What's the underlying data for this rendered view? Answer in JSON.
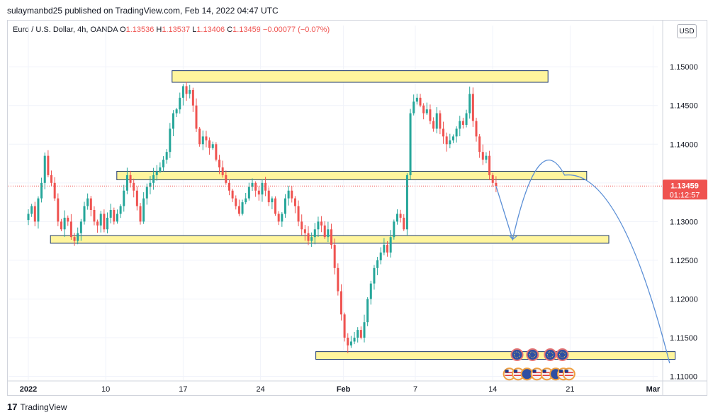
{
  "publisher": "sulaymanbd25 published on TradingView.com, Feb 14, 2022 04:47 UTC",
  "legend": {
    "symbol": "Euro / U.S. Dollar, 4h, OANDA",
    "open_label": "O",
    "open": "1.13536",
    "high_label": "H",
    "high": "1.13537",
    "low_label": "L",
    "low": "1.13406",
    "close_label": "C",
    "close": "1.13459",
    "change": "−0.00077 (−0.07%)"
  },
  "currency": "USD",
  "footer": {
    "logo": "17",
    "brand": "TradingView"
  },
  "colors": {
    "up": "#26a69a",
    "down": "#ef5350",
    "zone_fill": "#fff59d",
    "zone_stroke": "#1e3a6e",
    "projection": "#5b8fd6",
    "price_tag": "#ef5350"
  },
  "chart_data": {
    "type": "candlestick",
    "timeframe": "4h",
    "ylim": [
      1.1095,
      1.1535
    ],
    "price_ticks": [
      "1.15000",
      "1.14500",
      "1.14000",
      "1.13500",
      "1.13000",
      "1.12500",
      "1.12000",
      "1.11500",
      "1.11000"
    ],
    "time_ticks": [
      {
        "label": "2022",
        "pos": 0.0
      },
      {
        "label": "10",
        "pos": 7.0
      },
      {
        "label": "17",
        "pos": 14.0
      },
      {
        "label": "24",
        "pos": 21.0
      },
      {
        "label": "Feb",
        "pos": 28.5
      },
      {
        "label": "7",
        "pos": 35.0
      },
      {
        "label": "14",
        "pos": 42.0
      },
      {
        "label": "21",
        "pos": 49.0
      },
      {
        "label": "Mar",
        "pos": 56.5
      }
    ],
    "last_price": "1.13459",
    "countdown": "01:12:57",
    "last_value": 1.13459,
    "closes": [
      1.131,
      1.132,
      1.13,
      1.133,
      1.135,
      1.1385,
      1.136,
      1.135,
      1.133,
      1.13,
      1.129,
      1.1305,
      1.13,
      1.128,
      1.1275,
      1.1285,
      1.13,
      1.132,
      1.133,
      1.1315,
      1.13,
      1.1295,
      1.131,
      1.129,
      1.1305,
      1.1315,
      1.13,
      1.131,
      1.132,
      1.134,
      1.136,
      1.135,
      1.134,
      1.132,
      1.13,
      1.133,
      1.1345,
      1.135,
      1.136,
      1.1365,
      1.137,
      1.138,
      1.139,
      1.142,
      1.144,
      1.1445,
      1.146,
      1.1475,
      1.1465,
      1.147,
      1.145,
      1.142,
      1.14,
      1.141,
      1.1405,
      1.1395,
      1.14,
      1.138,
      1.137,
      1.136,
      1.135,
      1.134,
      1.133,
      1.132,
      1.131,
      1.1325,
      1.133,
      1.1345,
      1.135,
      1.134,
      1.1335,
      1.135,
      1.134,
      1.1325,
      1.133,
      1.131,
      1.13,
      1.131,
      1.133,
      1.134,
      1.133,
      1.132,
      1.13,
      1.129,
      1.1285,
      1.1275,
      1.128,
      1.129,
      1.13,
      1.1295,
      1.128,
      1.129,
      1.127,
      1.124,
      1.121,
      1.118,
      1.115,
      1.114,
      1.1145,
      1.115,
      1.116,
      1.115,
      1.117,
      1.12,
      1.122,
      1.124,
      1.125,
      1.126,
      1.127,
      1.126,
      1.128,
      1.13,
      1.131,
      1.1305,
      1.129,
      1.136,
      1.144,
      1.1455,
      1.146,
      1.145,
      1.144,
      1.1445,
      1.143,
      1.142,
      1.144,
      1.142,
      1.141,
      1.14,
      1.1405,
      1.141,
      1.142,
      1.143,
      1.1425,
      1.144,
      1.1465,
      1.143,
      1.141,
      1.139,
      1.138,
      1.1385,
      1.136,
      1.135,
      1.1346
    ],
    "support_resistance_zones": [
      {
        "from": 1.1495,
        "to": 1.148,
        "start": 13.0,
        "end": 47.0
      },
      {
        "from": 1.1365,
        "to": 1.1354,
        "start": 8.0,
        "end": 50.5
      },
      {
        "from": 1.1282,
        "to": 1.1272,
        "start": 2.0,
        "end": 52.5
      },
      {
        "from": 1.1132,
        "to": 1.1122,
        "start": 26.0,
        "end": 58.5
      }
    ],
    "projection_path": [
      {
        "t": 42.3,
        "p": 1.1346
      },
      {
        "t": 43.8,
        "p": 1.1277
      },
      {
        "t": 48.5,
        "p": 1.136
      },
      {
        "t": 53.5,
        "p": 1.129
      },
      {
        "t": 58.0,
        "p": 1.1117
      }
    ]
  }
}
